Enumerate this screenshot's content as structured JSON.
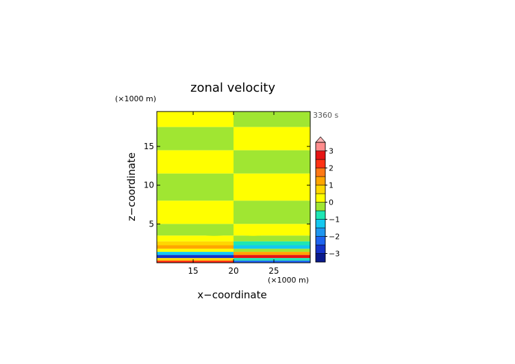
{
  "chart_data": {
    "type": "heatmap",
    "title": "zonal velocity",
    "time_label": "3360 s",
    "xlabel": "x−coordinate",
    "ylabel": "z−coordinate",
    "x_unit": "(×1000 m)",
    "y_unit": "(×1000 m)",
    "xlim": [
      10.5,
      29.5
    ],
    "ylim": [
      0,
      19.5
    ],
    "x_ticks": [
      15,
      20,
      25
    ],
    "y_ticks": [
      5,
      10,
      15
    ],
    "x_tick_labels": [
      "15",
      "20",
      "25"
    ],
    "y_tick_labels": [
      "5",
      "10",
      "15"
    ],
    "colorbar": {
      "min": -3.5,
      "max": 3.5,
      "step": 0.5,
      "extend": "max",
      "tick_values": [
        3,
        2,
        1,
        0,
        -1,
        -2,
        -3
      ],
      "tick_labels": [
        "3",
        "2",
        "1",
        "0",
        "−1",
        "−2",
        "−3"
      ],
      "colors": [
        "#0a1a8c",
        "#1432c8",
        "#1e64f0",
        "#1e96f0",
        "#14c8f0",
        "#1ee6b4",
        "#a0e632",
        "#ffff00",
        "#ffd700",
        "#ffa500",
        "#ff7814",
        "#ff3214",
        "#e61414",
        "#ff8c8c"
      ],
      "extend_color": "#ffb4b4"
    },
    "field": {
      "description_values": "zonal velocity in m/s, sampled on a coarse grid; alternating bands aloft",
      "band_levels_z_km": [
        {
          "z_from": 17.5,
          "z_to": 19.5,
          "left": 0.1,
          "right": -0.2
        },
        {
          "z_from": 14.5,
          "z_to": 17.5,
          "left": -0.2,
          "right": 0.1
        },
        {
          "z_from": 11.5,
          "z_to": 14.5,
          "left": 0.1,
          "right": -0.2
        },
        {
          "z_from": 8.0,
          "z_to": 11.5,
          "left": -0.2,
          "right": 0.1
        },
        {
          "z_from": 5.0,
          "z_to": 8.0,
          "left": 0.1,
          "right": -0.2
        },
        {
          "z_from": 3.5,
          "z_to": 5.0,
          "left": -0.2,
          "right": 0.1
        }
      ],
      "surface_left": [
        {
          "z": 3.0,
          "u": 0.3
        },
        {
          "z": 2.5,
          "u": 0.8
        },
        {
          "z": 2.0,
          "u": 1.3
        },
        {
          "z": 1.6,
          "u": 0.2
        },
        {
          "z": 1.2,
          "u": -1.4
        },
        {
          "z": 0.8,
          "u": -2.8
        },
        {
          "z": 0.4,
          "u": 0.5
        },
        {
          "z": 0.15,
          "u": 2.4
        }
      ],
      "surface_right": [
        {
          "z": 3.0,
          "u": -0.4
        },
        {
          "z": 2.5,
          "u": -0.9
        },
        {
          "z": 2.0,
          "u": -1.5
        },
        {
          "z": 1.6,
          "u": -0.3
        },
        {
          "z": 1.2,
          "u": 1.2
        },
        {
          "z": 0.8,
          "u": 2.7
        },
        {
          "z": 0.4,
          "u": -0.6
        },
        {
          "z": 0.15,
          "u": -2.3
        }
      ]
    }
  }
}
